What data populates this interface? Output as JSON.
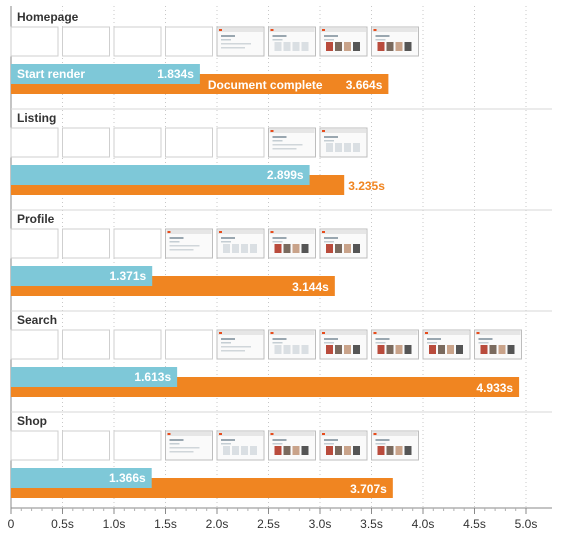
{
  "chart_data": {
    "type": "bar",
    "orientation": "horizontal",
    "title": "",
    "xlabel": "",
    "ylabel": "",
    "xlim": [
      0,
      5.2
    ],
    "x_ticks": [
      0,
      0.5,
      1.0,
      1.5,
      2.0,
      2.5,
      3.0,
      3.5,
      4.0,
      4.5,
      5.0
    ],
    "x_tick_labels": [
      "0",
      "0.5s",
      "1.0s",
      "1.5s",
      "2.0s",
      "2.5s",
      "3.0s",
      "3.5s",
      "4.0s",
      "4.5s",
      "5.0s"
    ],
    "grid": "vertical dotted",
    "legend": {
      "placement": "inline on first group",
      "entries": [
        "Start render",
        "Document complete"
      ]
    },
    "colors": {
      "start_render": "#7ec8d8",
      "document_complete": "#f08521"
    },
    "categories": [
      "Homepage",
      "Listing",
      "Profile",
      "Search",
      "Shop"
    ],
    "series": [
      {
        "name": "Start render",
        "values": [
          1.834,
          2.899,
          1.371,
          1.613,
          1.366
        ],
        "labels": [
          "1.834s",
          "2.899s",
          "1.371s",
          "1.613s",
          "1.366s"
        ]
      },
      {
        "name": "Document complete",
        "values": [
          3.664,
          3.235,
          3.144,
          4.933,
          3.707
        ],
        "labels": [
          "3.664s",
          "3.235s",
          "3.144s",
          "4.933s",
          "3.707s"
        ]
      }
    ],
    "filmstrip": {
      "frame_interval_s": 0.5,
      "frames": [
        {
          "blank": 4,
          "screenshots": 4
        },
        {
          "blank": 5,
          "screenshots": 2
        },
        {
          "blank": 3,
          "screenshots": 4
        },
        {
          "blank": 4,
          "screenshots": 6
        },
        {
          "blank": 3,
          "screenshots": 5
        }
      ]
    }
  }
}
